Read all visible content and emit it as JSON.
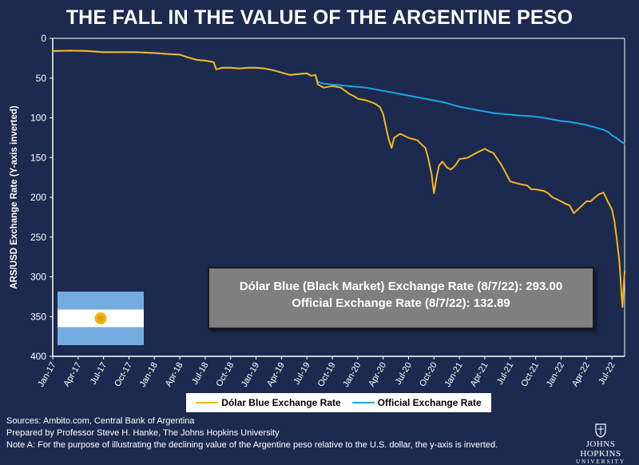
{
  "title": "THE FALL IN THE VALUE OF THE ARGENTINE PESO",
  "info_box": {
    "line1": "Dólar Blue (Black Market) Exchange Rate (8/7/22): 293.00",
    "line2": "Official Exchange Rate (8/7/22): 132.89"
  },
  "legend": {
    "blue_label": "Dólar Blue Exchange Rate",
    "official_label": "Official Exchange Rate"
  },
  "sources": [
    "Sources: Ambito.com, Central Bank of Argentina",
    "Prepared by Professor Steve H. Hanke, The Johns Hopkins University",
    "Note A: For the purpose of illustrating the declining value of the Argentine peso relative to the U.S. dollar, the y-axis is inverted."
  ],
  "logo": {
    "name": "JOHNS HOPKINS",
    "subtitle": "UNIVERSITY"
  },
  "colors": {
    "background": "#1b2a4e",
    "blue_series": "#f7b519",
    "official_series": "#1aa7e8",
    "plot_border": "#ffffff"
  },
  "chart_data": {
    "type": "line",
    "title": "THE FALL IN THE VALUE OF THE ARGENTINE PESO",
    "xlabel": "",
    "ylabel": "ARS/USD Exchange Rate (Y-axis inverted)",
    "ylim": [
      0,
      400
    ],
    "y_inverted": true,
    "yticks": [
      0,
      50,
      100,
      150,
      200,
      250,
      300,
      350,
      400
    ],
    "x_unit": "months since Jan-2017",
    "xlim": [
      0,
      67.5
    ],
    "xticks": [
      {
        "label": "Jan-17",
        "x": 0
      },
      {
        "label": "Apr-17",
        "x": 3
      },
      {
        "label": "Jul-17",
        "x": 6
      },
      {
        "label": "Oct-17",
        "x": 9
      },
      {
        "label": "Jan-18",
        "x": 12
      },
      {
        "label": "Apr-18",
        "x": 15
      },
      {
        "label": "Jul-18",
        "x": 18
      },
      {
        "label": "Oct-18",
        "x": 21
      },
      {
        "label": "Jan-19",
        "x": 24
      },
      {
        "label": "Apr-19",
        "x": 27
      },
      {
        "label": "Jul-19",
        "x": 30
      },
      {
        "label": "Oct-19",
        "x": 33
      },
      {
        "label": "Jan-20",
        "x": 36
      },
      {
        "label": "Apr-20",
        "x": 39
      },
      {
        "label": "Jul-20",
        "x": 42
      },
      {
        "label": "Oct-20",
        "x": 45
      },
      {
        "label": "Jan-21",
        "x": 48
      },
      {
        "label": "Apr-21",
        "x": 51
      },
      {
        "label": "Jul-21",
        "x": 54
      },
      {
        "label": "Oct-21",
        "x": 57
      },
      {
        "label": "Jan-22",
        "x": 60
      },
      {
        "label": "Apr-22",
        "x": 63
      },
      {
        "label": "Jul-22",
        "x": 66
      }
    ],
    "grid": false,
    "legend_position": "bottom",
    "series": [
      {
        "name": "Dólar Blue Exchange Rate",
        "color": "#f7b519",
        "points": [
          [
            0,
            16
          ],
          [
            2,
            15.5
          ],
          [
            4,
            15.8
          ],
          [
            6,
            17.5
          ],
          [
            8,
            17.3
          ],
          [
            10,
            17.5
          ],
          [
            12,
            18.5
          ],
          [
            14,
            20
          ],
          [
            15,
            20.5
          ],
          [
            16,
            24
          ],
          [
            17,
            27
          ],
          [
            18,
            28
          ],
          [
            19,
            30
          ],
          [
            19.3,
            39
          ],
          [
            20,
            37
          ],
          [
            21,
            37
          ],
          [
            22,
            38
          ],
          [
            23,
            37
          ],
          [
            24,
            37
          ],
          [
            25,
            38
          ],
          [
            26,
            40
          ],
          [
            27,
            43
          ],
          [
            28,
            46
          ],
          [
            29,
            45
          ],
          [
            30,
            44
          ],
          [
            30.5,
            47
          ],
          [
            31,
            46
          ],
          [
            31.3,
            58
          ],
          [
            32,
            62
          ],
          [
            33,
            60
          ],
          [
            34,
            62
          ],
          [
            35,
            70
          ],
          [
            35.6,
            73
          ],
          [
            36,
            76
          ],
          [
            37,
            78
          ],
          [
            37.5,
            80
          ],
          [
            38,
            82
          ],
          [
            38.6,
            86
          ],
          [
            39,
            95
          ],
          [
            39.3,
            110
          ],
          [
            39.6,
            125
          ],
          [
            40,
            138
          ],
          [
            40.3,
            125
          ],
          [
            41,
            120
          ],
          [
            42,
            125
          ],
          [
            43,
            128
          ],
          [
            44,
            138
          ],
          [
            44.3,
            150
          ],
          [
            44.7,
            170
          ],
          [
            45,
            195
          ],
          [
            45.3,
            175
          ],
          [
            45.6,
            160
          ],
          [
            46,
            155
          ],
          [
            46.5,
            162
          ],
          [
            47,
            165
          ],
          [
            47.5,
            160
          ],
          [
            48,
            152
          ],
          [
            49,
            150
          ],
          [
            50,
            144
          ],
          [
            51,
            139
          ],
          [
            51.5,
            142
          ],
          [
            52,
            144
          ],
          [
            52.5,
            152
          ],
          [
            53,
            160
          ],
          [
            53.5,
            170
          ],
          [
            54,
            180
          ],
          [
            55,
            183
          ],
          [
            56,
            185
          ],
          [
            56.5,
            190
          ],
          [
            57,
            190
          ],
          [
            58,
            192
          ],
          [
            58.5,
            195
          ],
          [
            59,
            200
          ],
          [
            60,
            205
          ],
          [
            60.5,
            208
          ],
          [
            61,
            210
          ],
          [
            61.5,
            220
          ],
          [
            62,
            215
          ],
          [
            62.5,
            210
          ],
          [
            63,
            205
          ],
          [
            63.5,
            205
          ],
          [
            64,
            200
          ],
          [
            64.5,
            196
          ],
          [
            65,
            194
          ],
          [
            65.5,
            205
          ],
          [
            66,
            215
          ],
          [
            66.3,
            230
          ],
          [
            66.6,
            255
          ],
          [
            66.9,
            282
          ],
          [
            67.1,
            318
          ],
          [
            67.25,
            338
          ],
          [
            67.4,
            310
          ],
          [
            67.5,
            293
          ]
        ]
      },
      {
        "name": "Official Exchange Rate",
        "color": "#1aa7e8",
        "points": [
          [
            0,
            16
          ],
          [
            2,
            15.5
          ],
          [
            4,
            15.8
          ],
          [
            6,
            17.5
          ],
          [
            8,
            17.3
          ],
          [
            10,
            17.5
          ],
          [
            12,
            18.5
          ],
          [
            14,
            20
          ],
          [
            15,
            20.5
          ],
          [
            16,
            24
          ],
          [
            17,
            27
          ],
          [
            18,
            28
          ],
          [
            19,
            30
          ],
          [
            19.3,
            39
          ],
          [
            20,
            37
          ],
          [
            21,
            37
          ],
          [
            22,
            38
          ],
          [
            23,
            37
          ],
          [
            24,
            37
          ],
          [
            25,
            38
          ],
          [
            26,
            40
          ],
          [
            27,
            43
          ],
          [
            28,
            46
          ],
          [
            29,
            45
          ],
          [
            30,
            44
          ],
          [
            30.5,
            47
          ],
          [
            31,
            46
          ],
          [
            31.3,
            55
          ],
          [
            32,
            57
          ],
          [
            33,
            58
          ],
          [
            34,
            59
          ],
          [
            35,
            60
          ],
          [
            36,
            61
          ],
          [
            37,
            62
          ],
          [
            38,
            64
          ],
          [
            39,
            66
          ],
          [
            40,
            68
          ],
          [
            41,
            70
          ],
          [
            42,
            72
          ],
          [
            43,
            74
          ],
          [
            44,
            76
          ],
          [
            45,
            78
          ],
          [
            46,
            80
          ],
          [
            47,
            83
          ],
          [
            48,
            86
          ],
          [
            49,
            88
          ],
          [
            50,
            90
          ],
          [
            51,
            92
          ],
          [
            52,
            94
          ],
          [
            53,
            95
          ],
          [
            54,
            96
          ],
          [
            55,
            97
          ],
          [
            56,
            97.5
          ],
          [
            57,
            98.5
          ],
          [
            58,
            100
          ],
          [
            59,
            102
          ],
          [
            60,
            104
          ],
          [
            61,
            105
          ],
          [
            62,
            107
          ],
          [
            63,
            109
          ],
          [
            64,
            112
          ],
          [
            65,
            115
          ],
          [
            65.6,
            118
          ],
          [
            66,
            122
          ],
          [
            66.5,
            125
          ],
          [
            67,
            129
          ],
          [
            67.5,
            132.89
          ]
        ]
      }
    ]
  }
}
